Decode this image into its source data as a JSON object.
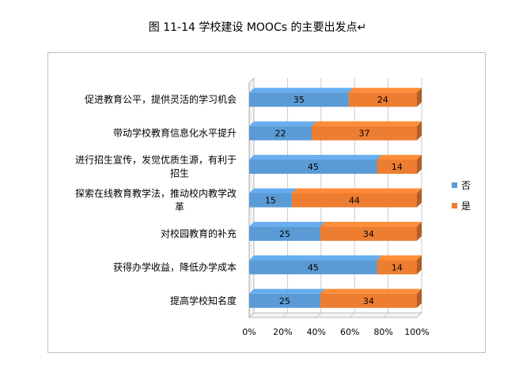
{
  "caption": "图 11-14  学校建设 MOOCs 的主要出发点↵",
  "chart_data": {
    "type": "bar",
    "orientation": "horizontal",
    "stacked": "percent",
    "categories": [
      "促进教育公平，提供灵活的学习机会",
      "带动学校教育信息化水平提升",
      "进行招生宣传，发觉优质生源，有利于招生",
      "探索在线教育教学法，推动校内教学改革",
      "对校园教育的补充",
      "获得办学收益，降低办学成本",
      "提高学校知名度"
    ],
    "category_lines": [
      [
        "促进教育公平，提供灵活的学习机会"
      ],
      [
        "带动学校教育信息化水平提升"
      ],
      [
        "进行招生宣传，发觉优质生源，有利于",
        "招生"
      ],
      [
        "探索在线教育教学法，推动校内教学改",
        "革"
      ],
      [
        "对校园教育的补充"
      ],
      [
        "获得办学收益，降低办学成本"
      ],
      [
        "提高学校知名度"
      ]
    ],
    "series": [
      {
        "name": "否",
        "color": "#5b9bd5",
        "values": [
          35,
          22,
          45,
          15,
          25,
          45,
          25
        ]
      },
      {
        "name": "是",
        "color": "#ed7d31",
        "values": [
          24,
          37,
          14,
          44,
          34,
          14,
          34
        ]
      }
    ],
    "x_ticks": [
      "0%",
      "20%",
      "40%",
      "60%",
      "80%",
      "100%"
    ],
    "xlim": [
      0,
      100
    ],
    "legend_position": "right",
    "grid": true,
    "style": "3d"
  }
}
